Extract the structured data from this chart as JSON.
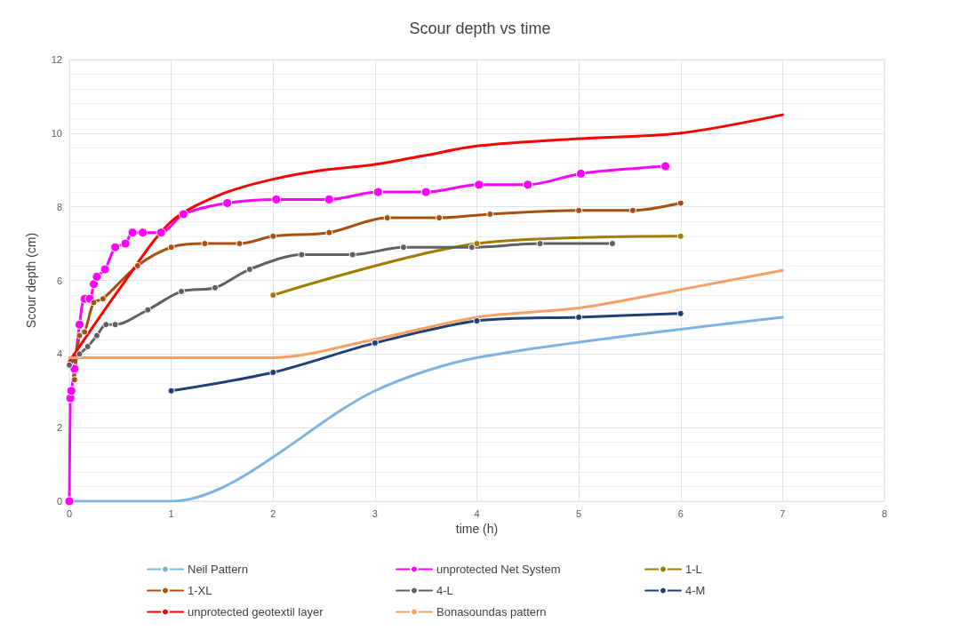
{
  "chart_data": {
    "type": "line",
    "title": "Scour depth vs time",
    "xlabel": "time (h)",
    "ylabel": "Scour depth (cm)",
    "xlim": [
      0,
      8
    ],
    "xticks": [
      0,
      1,
      2,
      3,
      4,
      5,
      6,
      7,
      8
    ],
    "ylim": [
      0,
      12
    ],
    "yticks": [
      0,
      2,
      4,
      6,
      8,
      10,
      12
    ],
    "grid": true,
    "legend": "bottom",
    "line_style": "solid",
    "series": [
      {
        "name": "Neil Pattern",
        "color": "#7eb3e0",
        "marker": "none",
        "x": [
          0,
          1,
          3,
          4,
          7
        ],
        "values": [
          0,
          0,
          3.0,
          3.9,
          5.0
        ]
      },
      {
        "name": "unprotected Net System",
        "color": "#ff00ff",
        "marker": "circle",
        "x": [
          0,
          0.01,
          0.02,
          0.05,
          0.1,
          0.15,
          0.2,
          0.24,
          0.27,
          0.35,
          0.45,
          0.55,
          0.62,
          0.72,
          0.9,
          1.12,
          1.55,
          2.03,
          2.55,
          3.03,
          3.5,
          4.02,
          4.5,
          5.02,
          5.85
        ],
        "values": [
          0,
          2.8,
          3.0,
          3.6,
          4.8,
          5.5,
          5.5,
          5.9,
          6.1,
          6.3,
          6.9,
          7.0,
          7.3,
          7.3,
          7.3,
          7.8,
          8.1,
          8.2,
          8.2,
          8.4,
          8.4,
          8.6,
          8.6,
          8.9,
          9.1
        ]
      },
      {
        "name": "1-L",
        "color": "#a07d00",
        "marker": "circle",
        "x": [
          2,
          4,
          6
        ],
        "values": [
          5.6,
          7.0,
          7.2
        ]
      },
      {
        "name": "1-XL",
        "color": "#a8500f",
        "marker": "circle",
        "x": [
          0.05,
          0.1,
          0.15,
          0.24,
          0.33,
          0.67,
          1.0,
          1.33,
          1.67,
          2.0,
          2.55,
          3.12,
          3.63,
          4.13,
          5.0,
          5.53,
          6.0
        ],
        "values": [
          3.3,
          4.5,
          4.6,
          5.4,
          5.5,
          6.4,
          6.9,
          7.0,
          7.0,
          7.2,
          7.3,
          7.7,
          7.7,
          7.8,
          7.9,
          7.9,
          8.1
        ]
      },
      {
        "name": "4-L",
        "color": "#606060",
        "marker": "circle",
        "x": [
          0,
          0.1,
          0.18,
          0.27,
          0.36,
          0.45,
          0.77,
          1.1,
          1.43,
          1.77,
          2.28,
          2.78,
          3.28,
          3.95,
          4.62,
          5.33
        ],
        "values": [
          3.7,
          4.0,
          4.2,
          4.5,
          4.8,
          4.8,
          5.2,
          5.7,
          5.8,
          6.3,
          6.7,
          6.7,
          6.9,
          6.9,
          7.0,
          7.0
        ]
      },
      {
        "name": "4-M",
        "color": "#203f75",
        "marker": "circle",
        "x": [
          1,
          2,
          3,
          4,
          5,
          6
        ],
        "values": [
          3.0,
          3.5,
          4.3,
          4.9,
          5.0,
          5.1
        ]
      },
      {
        "name": "unprotected geotextil layer",
        "color": "#ff0000",
        "marker": "none",
        "x": [
          0,
          0.5,
          1,
          1.5,
          2,
          2.5,
          3,
          3.5,
          4,
          5,
          6,
          7
        ],
        "values": [
          3.8,
          5.8,
          7.6,
          8.35,
          8.75,
          9.0,
          9.15,
          9.4,
          9.65,
          9.85,
          10.0,
          10.5
        ]
      },
      {
        "name": "Bonasoundas pattern",
        "color": "#f4a067",
        "marker": "none",
        "x": [
          0,
          1,
          2,
          3,
          4,
          5,
          6,
          7
        ],
        "values": [
          3.9,
          3.9,
          3.9,
          4.4,
          5.0,
          5.25,
          5.75,
          6.27
        ]
      }
    ]
  }
}
